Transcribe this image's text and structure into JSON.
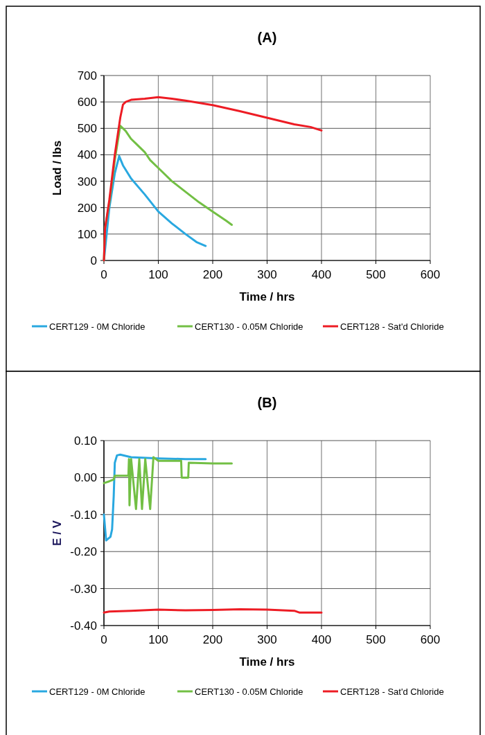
{
  "chart_data": [
    {
      "type": "line",
      "title": "(A)",
      "xlabel": "Time / hrs",
      "ylabel": "Load / lbs",
      "xlim": [
        0,
        600
      ],
      "xticks": [
        0,
        100,
        200,
        300,
        400,
        500,
        600
      ],
      "ylim": [
        0,
        700
      ],
      "yticks": [
        0,
        100,
        200,
        300,
        400,
        500,
        600,
        700
      ],
      "grid": true,
      "legend": "bottom",
      "marker": "none",
      "line_style": "solid",
      "series": [
        {
          "name": "CERT129 - 0M Chloride",
          "color": "#29a8e0",
          "x": [
            0,
            10,
            20,
            28,
            35,
            50,
            75,
            100,
            125,
            150,
            170,
            187
          ],
          "values": [
            0,
            200,
            330,
            395,
            360,
            310,
            250,
            185,
            140,
            100,
            70,
            55
          ]
        },
        {
          "name": "CERT130 - 0.05M Chloride",
          "color": "#72bf44",
          "x": [
            0,
            2,
            10,
            20,
            30,
            40,
            50,
            60,
            75,
            85,
            100,
            125,
            150,
            175,
            200,
            225,
            235
          ],
          "values": [
            0,
            120,
            220,
            380,
            510,
            490,
            460,
            440,
            410,
            380,
            350,
            300,
            260,
            220,
            185,
            150,
            135
          ]
        },
        {
          "name": "CERT128 - Sat'd Chloride",
          "color": "#ed1c24",
          "x": [
            0,
            2,
            10,
            20,
            30,
            35,
            40,
            50,
            75,
            100,
            125,
            150,
            200,
            250,
            300,
            350,
            380,
            400
          ],
          "values": [
            0,
            120,
            230,
            400,
            540,
            590,
            600,
            608,
            612,
            618,
            612,
            605,
            588,
            565,
            540,
            515,
            505,
            492
          ]
        }
      ]
    },
    {
      "type": "line",
      "title": "(B)",
      "xlabel": "Time / hrs",
      "ylabel": "E / V",
      "xlim": [
        0,
        600
      ],
      "xticks": [
        0,
        100,
        200,
        300,
        400,
        500,
        600
      ],
      "ylim": [
        -0.4,
        0.1
      ],
      "yticks": [
        {
          "value": -0.4,
          "label": "-0.40"
        },
        {
          "value": -0.3,
          "label": "-0.30"
        },
        {
          "value": -0.2,
          "label": "-0.20"
        },
        {
          "value": -0.1,
          "label": "-0.10"
        },
        {
          "value": 0,
          "label": "0.00"
        },
        {
          "value": 0.1,
          "label": "0.10"
        }
      ],
      "grid": true,
      "legend": "bottom",
      "marker": "none",
      "line_style": "solid",
      "series": [
        {
          "name": "CERT129 - 0M Chloride",
          "color": "#29a8e0",
          "x": [
            0,
            4,
            12,
            15,
            18,
            20,
            24,
            30,
            50,
            100,
            150,
            187
          ],
          "values": [
            -0.1,
            -0.17,
            -0.16,
            -0.14,
            -0.05,
            0.04,
            0.06,
            0.062,
            0.055,
            0.052,
            0.05,
            0.05
          ]
        },
        {
          "name": "CERT130 - 0.05M Chloride",
          "color": "#72bf44",
          "x": [
            0,
            10,
            18,
            20,
            30,
            45,
            46,
            47,
            50,
            59,
            65,
            70,
            76,
            85,
            91,
            100,
            142,
            143,
            155,
            156,
            200,
            235
          ],
          "values": [
            -0.015,
            -0.01,
            -0.005,
            0.005,
            0.005,
            0.005,
            0.05,
            -0.075,
            0.05,
            -0.085,
            0.05,
            -0.085,
            0.05,
            -0.085,
            0.055,
            0.045,
            0.045,
            0.0,
            0.0,
            0.04,
            0.038,
            0.038
          ]
        },
        {
          "name": "CERT128 - Sat'd Chloride",
          "color": "#ed1c24",
          "x": [
            0,
            10,
            50,
            100,
            150,
            200,
            250,
            300,
            350,
            360,
            400
          ],
          "values": [
            -0.365,
            -0.362,
            -0.36,
            -0.357,
            -0.359,
            -0.358,
            -0.356,
            -0.357,
            -0.36,
            -0.365,
            -0.365
          ]
        }
      ]
    }
  ]
}
